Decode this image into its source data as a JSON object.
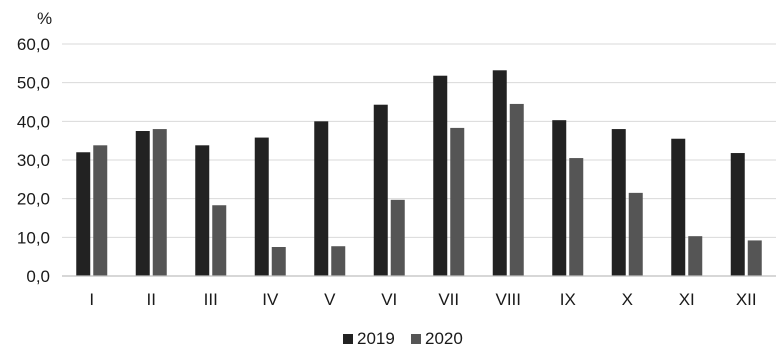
{
  "chart_data": {
    "type": "bar",
    "unit_label": "%",
    "categories": [
      "I",
      "II",
      "III",
      "IV",
      "V",
      "VI",
      "VII",
      "VIII",
      "IX",
      "X",
      "XI",
      "XII"
    ],
    "series": [
      {
        "name": "2019",
        "color": "#222222",
        "values": [
          32.0,
          37.5,
          33.8,
          35.8,
          40.0,
          44.3,
          51.8,
          53.2,
          40.3,
          38.0,
          35.5,
          31.8
        ]
      },
      {
        "name": "2020",
        "color": "#555555",
        "values": [
          33.8,
          38.0,
          18.3,
          7.5,
          7.7,
          19.7,
          38.3,
          44.5,
          30.5,
          21.5,
          10.3,
          9.2
        ]
      }
    ],
    "y_ticks": [
      "0,0",
      "10,0",
      "20,0",
      "30,0",
      "40,0",
      "50,0",
      "60,0"
    ],
    "ylim": [
      0,
      60
    ],
    "y_tick_step": 10,
    "grid": true,
    "legend_position": "bottom-center"
  }
}
